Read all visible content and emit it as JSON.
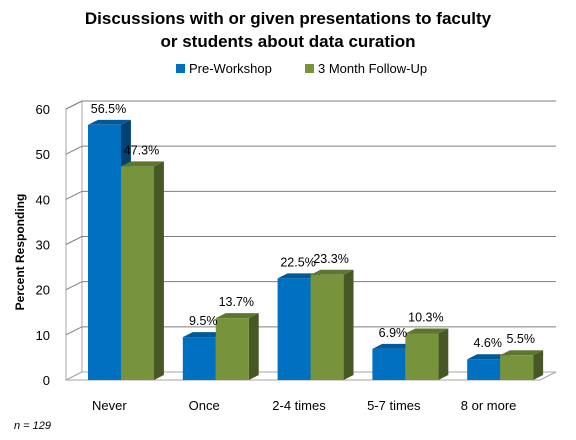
{
  "chart_data": {
    "type": "bar",
    "title": [
      "Discussions with or given presentations to faculty",
      "or students about data curation"
    ],
    "categories": [
      "Never",
      "Once",
      "2-4 times",
      "5-7 times",
      "8 or more"
    ],
    "series": [
      {
        "name": "Pre-Workshop",
        "values": [
          56.5,
          9.5,
          22.5,
          6.9,
          4.6
        ],
        "labels": [
          "56.5%",
          "9.5%",
          "22.5%",
          "6.9%",
          "4.6%"
        ],
        "color": "#0070C0"
      },
      {
        "name": "3 Month Follow-Up",
        "values": [
          47.3,
          13.7,
          23.3,
          10.3,
          5.5
        ],
        "labels": [
          "47.3%",
          "13.7%",
          "23.3%",
          "10.3%",
          "5.5%"
        ],
        "color": "#77933C"
      }
    ],
    "ylabel": "Percent Responding",
    "ylim": [
      0,
      60
    ],
    "yticks": [
      0,
      10,
      20,
      30,
      40,
      50,
      60
    ],
    "grid": true,
    "legend_position": "top",
    "note": "n = 129"
  }
}
